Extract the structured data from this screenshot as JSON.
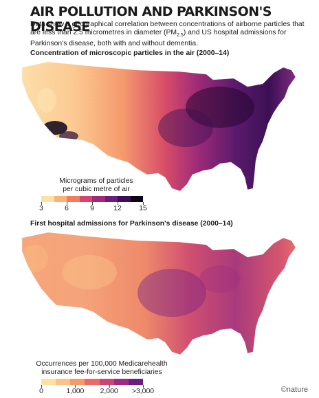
{
  "title": "AIR POLLUTION AND PARKINSON'S DISEASE",
  "subtitle_part1": "Data show a geographical correlation between concentrations of airborne particles that are less than 2.5 micrometres in diameter (PM",
  "subtitle_sub": "2.5",
  "subtitle_part2": ") and US hospital admissions for Parkinson's disease, both with and without dementia.",
  "map1": {
    "heading": "Concentration of microscopic particles in the air (2000–14)",
    "legend_line1": "Micrograms of particles",
    "legend_line2": "per cubic metre of air",
    "ticks": [
      "3",
      "6",
      "9",
      "12",
      "15"
    ],
    "colors": [
      "#fde0a3",
      "#fbb277",
      "#f17d5a",
      "#d6456a",
      "#a12a79",
      "#6c1c7c",
      "#3a0f5a",
      "#0d0418"
    ]
  },
  "map2": {
    "heading": "First hospital admissions for Parkinson's disease (2000–14)",
    "legend_line1": "Occurrences per 100,000 Medicarehealth",
    "legend_line2": "insurance fee-for-service beneficiaries",
    "ticks": [
      "0",
      "1,000",
      "2,000",
      ">3,000"
    ],
    "colors": [
      "#fde0a3",
      "#fbc388",
      "#f69a6c",
      "#ea6b63",
      "#cc4474",
      "#9e2a82",
      "#6a1f85"
    ]
  },
  "credit": "©nature"
}
